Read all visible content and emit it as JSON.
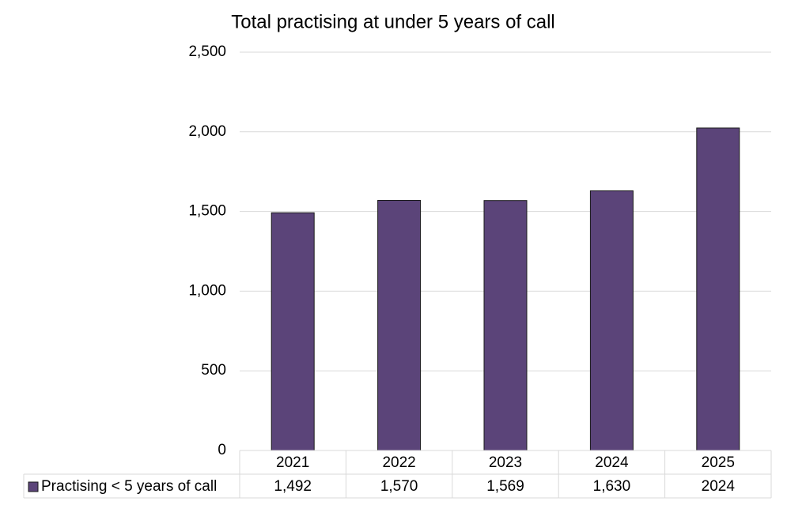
{
  "chart_data": {
    "type": "bar",
    "title": "Total practising at under 5 years of call",
    "categories": [
      "2021",
      "2022",
      "2023",
      "2024",
      "2025"
    ],
    "series": [
      {
        "name": "Practising < 5 years of call",
        "color": "#5b4479",
        "values": [
          1492,
          1570,
          1569,
          1630,
          2024
        ],
        "value_labels": [
          "1,492",
          "1,570",
          "1,569",
          "1,630",
          "2024"
        ]
      }
    ],
    "ylim": [
      0,
      2500
    ],
    "yticks": [
      0,
      500,
      {
        "value": 1000,
        "label": "1,000"
      },
      {
        "value": 1500,
        "label": "1,500"
      },
      {
        "value": 2000,
        "label": "2,000"
      },
      {
        "value": 2500,
        "label": "2,500"
      }
    ],
    "grid": true,
    "data_table": true
  }
}
